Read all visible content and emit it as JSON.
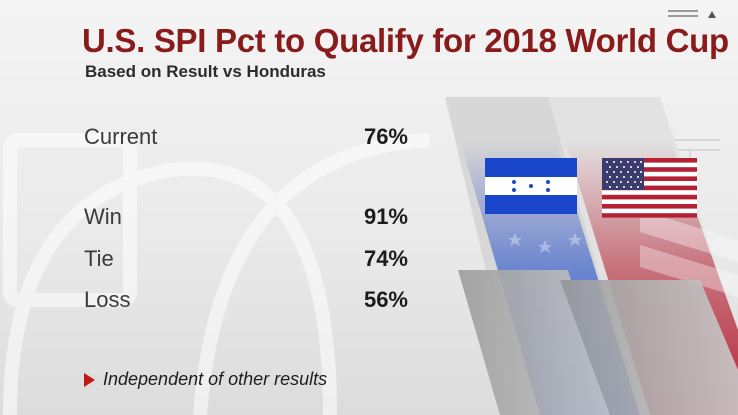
{
  "header": {
    "title": "U.S. SPI Pct to Qualify for 2018 World Cup",
    "subtitle": "Based on Result vs Honduras"
  },
  "rows": [
    {
      "label": "Current",
      "value": "76%"
    },
    {
      "label": "Win",
      "value": "91%"
    },
    {
      "label": "Tie",
      "value": "74%"
    },
    {
      "label": "Loss",
      "value": "56%"
    }
  ],
  "footnote": {
    "text": "Independent of other results",
    "icon": "red-triangle-icon"
  },
  "flags": {
    "left": {
      "name": "Honduras",
      "icon": "honduras-flag-icon",
      "color": "#1a47c9"
    },
    "right": {
      "name": "United States",
      "icon": "usa-flag-icon",
      "color": "#b31b2e"
    }
  },
  "colors": {
    "title": "#8a1b1b",
    "accent_red": "#c41616",
    "honduras_blue": "#1a47c9",
    "usa_red": "#b22234",
    "usa_blue": "#3c3b6e"
  }
}
